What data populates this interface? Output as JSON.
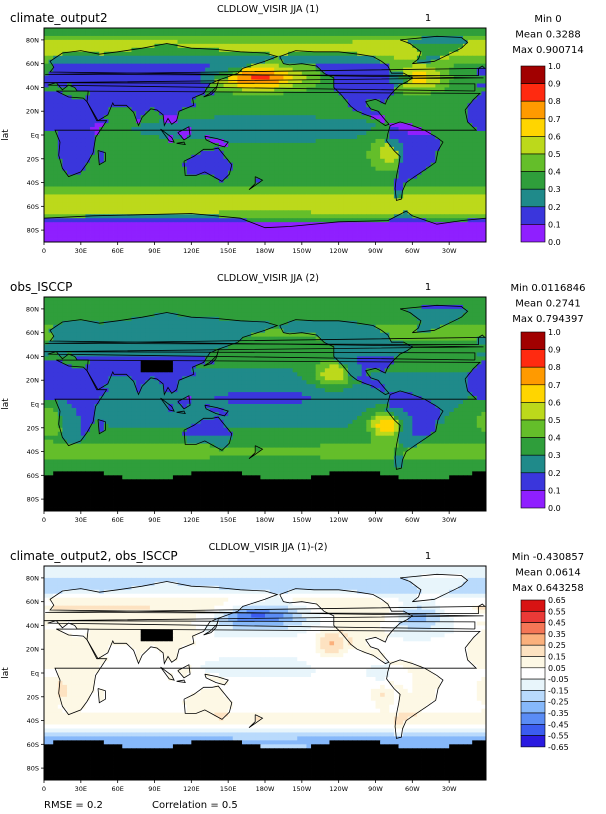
{
  "colors": {
    "cloud_scale": [
      "#8f1fff",
      "#3a36dc",
      "#1f8a8a",
      "#2f9e3b",
      "#64be2a",
      "#bcd91b",
      "#ffd500",
      "#ff9a00",
      "#ff2a10",
      "#a10000"
    ],
    "diff_scale": [
      "#2a1ae0",
      "#3b5cf0",
      "#5a8cf5",
      "#86b8fa",
      "#b9dafc",
      "#e8f5fb",
      "#ffffff",
      "#fdf8e5",
      "#fde2c1",
      "#fbb07c",
      "#f57656",
      "#ea3a37",
      "#d81313"
    ],
    "land_outline": "#000000",
    "missing": "#000000"
  },
  "axis_labels": {
    "lat_ticks": [
      "80N",
      "60N",
      "40N",
      "20N",
      "Eq",
      "20S",
      "40S",
      "60S",
      "80S"
    ],
    "lon_ticks": [
      "0",
      "30E",
      "60E",
      "90E",
      "120E",
      "150E",
      "180W",
      "150W",
      "120W",
      "90W",
      "60W",
      "30W"
    ],
    "ylabel": "lat"
  },
  "panels": [
    {
      "id": "model",
      "left_title": "climate_output2",
      "center_title": "CLDLOW_VISIR JJA (1)",
      "right_marker": "1",
      "stats": [
        "Min 0",
        "Mean 0.3288",
        "Max 0.900714"
      ],
      "colorbar_labels": [
        "1.0",
        "0.9",
        "0.8",
        "0.7",
        "0.6",
        "0.5",
        "0.4",
        "0.3",
        "0.2",
        "0.1",
        "0.0"
      ]
    },
    {
      "id": "obs",
      "left_title": "obs_ISCCP",
      "center_title": "CLDLOW_VISIR JJA (2)",
      "right_marker": "1",
      "stats": [
        "Min 0.0116846",
        "Mean 0.2741",
        "Max 0.794397"
      ],
      "colorbar_labels": [
        "1.0",
        "0.9",
        "0.8",
        "0.7",
        "0.6",
        "0.5",
        "0.4",
        "0.3",
        "0.2",
        "0.1",
        "0.0"
      ]
    },
    {
      "id": "diff",
      "left_title": "climate_output2, obs_ISCCP",
      "center_title": "CLDLOW_VISIR JJA (1)-(2)",
      "right_marker": "1",
      "stats": [
        "Min -0.430857",
        "Mean 0.0614",
        "Max 0.643258"
      ],
      "colorbar_labels": [
        "0.65",
        "0.55",
        "0.45",
        "0.35",
        "0.25",
        "0.15",
        "0.05",
        "-0.05",
        "-0.15",
        "-0.25",
        "-0.35",
        "-0.45",
        "-0.55",
        "-0.65"
      ],
      "footer": [
        "RMSE = 0.2",
        "Correlation = 0.5"
      ]
    }
  ],
  "chart_data": [
    {
      "type": "heatmap",
      "title": "CLDLOW_VISIR JJA (1)",
      "series_label": "climate_output2",
      "xlabel": "",
      "ylabel": "lat",
      "xlim": [
        0,
        360
      ],
      "ylim": [
        -90,
        90
      ],
      "color_scale": [
        0.0,
        1.0
      ],
      "stats": {
        "min": 0,
        "mean": 0.3288,
        "max": 0.900714
      },
      "grid": false
    },
    {
      "type": "heatmap",
      "title": "CLDLOW_VISIR JJA (2)",
      "series_label": "obs_ISCCP",
      "xlabel": "",
      "ylabel": "lat",
      "xlim": [
        0,
        360
      ],
      "ylim": [
        -90,
        90
      ],
      "color_scale": [
        0.0,
        1.0
      ],
      "stats": {
        "min": 0.0116846,
        "mean": 0.2741,
        "max": 0.794397
      },
      "grid": false
    },
    {
      "type": "heatmap",
      "title": "CLDLOW_VISIR JJA (1)-(2)",
      "series_label": "climate_output2, obs_ISCCP",
      "xlabel": "",
      "ylabel": "lat",
      "xlim": [
        0,
        360
      ],
      "ylim": [
        -90,
        90
      ],
      "color_scale": [
        -0.65,
        0.65
      ],
      "stats": {
        "min": -0.430857,
        "mean": 0.0614,
        "max": 0.643258,
        "rmse": 0.2,
        "correlation": 0.5
      },
      "grid": false
    }
  ]
}
